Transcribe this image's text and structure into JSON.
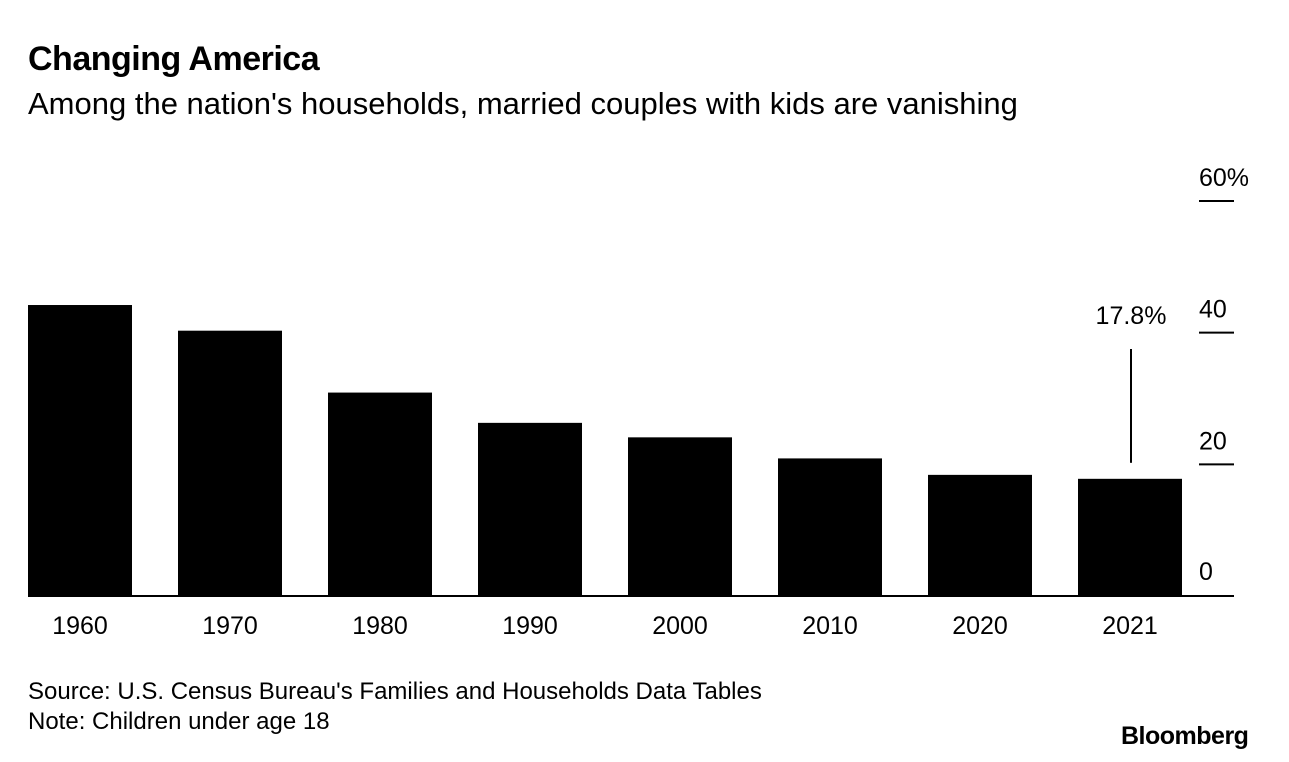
{
  "chart_data": {
    "type": "bar",
    "title": "Changing America",
    "subtitle": "Among the nation's households, married couples with kids are vanishing",
    "categories": [
      "1960",
      "1970",
      "1980",
      "1990",
      "2000",
      "2010",
      "2020",
      "2021"
    ],
    "values": [
      44.2,
      40.3,
      30.9,
      26.3,
      24.1,
      20.9,
      18.4,
      17.8
    ],
    "ylim": [
      0,
      60
    ],
    "yticks": [
      0,
      20,
      40,
      60
    ],
    "ytick_labels": [
      "0",
      "20",
      "40",
      "60%"
    ],
    "annotation": {
      "category": "2021",
      "label": "17.8%"
    },
    "xlabel": "",
    "ylabel": "",
    "grid": false,
    "bar_color": "#000000"
  },
  "footer": {
    "source": "Source: U.S. Census Bureau's Families and Households Data Tables",
    "note": "Note: Children under age 18",
    "logo": "Bloomberg"
  }
}
